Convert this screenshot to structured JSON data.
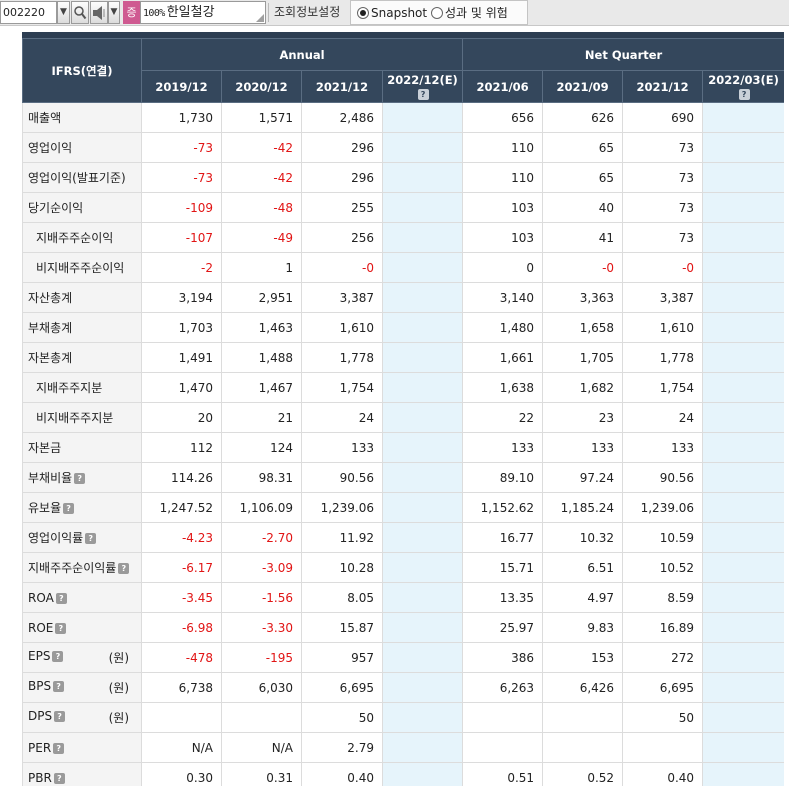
{
  "toolbar": {
    "code_value": "002220",
    "dropdown_glyph": "▼",
    "market_badge": "증",
    "zoom_label": "100%",
    "company_name": "한일철강",
    "settings_label": "조회정보설정",
    "radio_snapshot": "Snapshot",
    "radio_performance": "성과 및 위험"
  },
  "table": {
    "corner_label": "IFRS(연결)",
    "group_annual": "Annual",
    "group_quarter": "Net Quarter",
    "periods": [
      "2019/12",
      "2020/12",
      "2021/12",
      "2022/12(E)",
      "2021/06",
      "2021/09",
      "2021/12",
      "2022/03(E)"
    ],
    "rows": [
      {
        "label": "매출액",
        "indent": false,
        "help": false,
        "unit": "",
        "values": [
          "1,730",
          "1,571",
          "2,486",
          "",
          "656",
          "626",
          "690",
          ""
        ]
      },
      {
        "label": "영업이익",
        "indent": false,
        "help": false,
        "unit": "",
        "values": [
          "-73",
          "-42",
          "296",
          "",
          "110",
          "65",
          "73",
          ""
        ]
      },
      {
        "label": "영업이익(발표기준)",
        "indent": false,
        "help": false,
        "unit": "",
        "values": [
          "-73",
          "-42",
          "296",
          "",
          "110",
          "65",
          "73",
          ""
        ]
      },
      {
        "label": "당기순이익",
        "indent": false,
        "help": false,
        "unit": "",
        "values": [
          "-109",
          "-48",
          "255",
          "",
          "103",
          "40",
          "73",
          ""
        ]
      },
      {
        "label": "지배주주순이익",
        "indent": true,
        "help": false,
        "unit": "",
        "values": [
          "-107",
          "-49",
          "256",
          "",
          "103",
          "41",
          "73",
          ""
        ]
      },
      {
        "label": "비지배주주순이익",
        "indent": true,
        "help": false,
        "unit": "",
        "values": [
          "-2",
          "1",
          "-0",
          "",
          "0",
          "-0",
          "-0",
          ""
        ]
      },
      {
        "label": "자산총계",
        "indent": false,
        "help": false,
        "unit": "",
        "values": [
          "3,194",
          "2,951",
          "3,387",
          "",
          "3,140",
          "3,363",
          "3,387",
          ""
        ]
      },
      {
        "label": "부채총계",
        "indent": false,
        "help": false,
        "unit": "",
        "values": [
          "1,703",
          "1,463",
          "1,610",
          "",
          "1,480",
          "1,658",
          "1,610",
          ""
        ]
      },
      {
        "label": "자본총계",
        "indent": false,
        "help": false,
        "unit": "",
        "values": [
          "1,491",
          "1,488",
          "1,778",
          "",
          "1,661",
          "1,705",
          "1,778",
          ""
        ]
      },
      {
        "label": "지배주주지분",
        "indent": true,
        "help": false,
        "unit": "",
        "values": [
          "1,470",
          "1,467",
          "1,754",
          "",
          "1,638",
          "1,682",
          "1,754",
          ""
        ]
      },
      {
        "label": "비지배주주지분",
        "indent": true,
        "help": false,
        "unit": "",
        "values": [
          "20",
          "21",
          "24",
          "",
          "22",
          "23",
          "24",
          ""
        ]
      },
      {
        "label": "자본금",
        "indent": false,
        "help": false,
        "unit": "",
        "values": [
          "112",
          "124",
          "133",
          "",
          "133",
          "133",
          "133",
          ""
        ]
      },
      {
        "label": "부채비율",
        "indent": false,
        "help": true,
        "unit": "",
        "values": [
          "114.26",
          "98.31",
          "90.56",
          "",
          "89.10",
          "97.24",
          "90.56",
          ""
        ]
      },
      {
        "label": "유보율",
        "indent": false,
        "help": true,
        "unit": "",
        "values": [
          "1,247.52",
          "1,106.09",
          "1,239.06",
          "",
          "1,152.62",
          "1,185.24",
          "1,239.06",
          ""
        ]
      },
      {
        "label": "영업이익률",
        "indent": false,
        "help": true,
        "unit": "",
        "values": [
          "-4.23",
          "-2.70",
          "11.92",
          "",
          "16.77",
          "10.32",
          "10.59",
          ""
        ]
      },
      {
        "label": "지배주주순이익률",
        "indent": false,
        "help": true,
        "unit": "",
        "values": [
          "-6.17",
          "-3.09",
          "10.28",
          "",
          "15.71",
          "6.51",
          "10.52",
          ""
        ]
      },
      {
        "label": "ROA",
        "indent": false,
        "help": true,
        "unit": "",
        "values": [
          "-3.45",
          "-1.56",
          "8.05",
          "",
          "13.35",
          "4.97",
          "8.59",
          ""
        ]
      },
      {
        "label": "ROE",
        "indent": false,
        "help": true,
        "unit": "",
        "values": [
          "-6.98",
          "-3.30",
          "15.87",
          "",
          "25.97",
          "9.83",
          "16.89",
          ""
        ]
      },
      {
        "label": "EPS",
        "indent": false,
        "help": true,
        "unit": "(원)",
        "values": [
          "-478",
          "-195",
          "957",
          "",
          "386",
          "153",
          "272",
          ""
        ]
      },
      {
        "label": "BPS",
        "indent": false,
        "help": true,
        "unit": "(원)",
        "values": [
          "6,738",
          "6,030",
          "6,695",
          "",
          "6,263",
          "6,426",
          "6,695",
          ""
        ]
      },
      {
        "label": "DPS",
        "indent": false,
        "help": true,
        "unit": "(원)",
        "values": [
          "",
          "",
          "50",
          "",
          "",
          "",
          "50",
          ""
        ]
      },
      {
        "label": "PER",
        "indent": false,
        "help": true,
        "unit": "",
        "values": [
          "N/A",
          "N/A",
          "2.79",
          "",
          "",
          "",
          "",
          ""
        ]
      },
      {
        "label": "PBR",
        "indent": false,
        "help": true,
        "unit": "",
        "values": [
          "0.30",
          "0.31",
          "0.40",
          "",
          "0.51",
          "0.52",
          "0.40",
          ""
        ]
      }
    ]
  },
  "colors": {
    "header_bg": "#34475c",
    "estimate_bg": "#e6f4fb",
    "negative": "#e11515",
    "market_badge": "#cf5a91"
  }
}
